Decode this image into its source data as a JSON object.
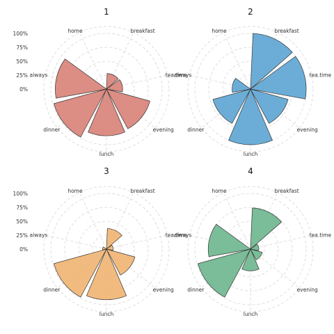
{
  "chart_data": [
    {
      "type": "polar-bar",
      "title": "1",
      "categories": [
        "breakfast",
        "tea.time",
        "evening",
        "lunch",
        "dinner",
        "always",
        "home"
      ],
      "values": [
        0.28,
        0.29,
        0.81,
        0.84,
        0.98,
        0.92,
        0.0
      ],
      "color": "#d9837a",
      "rlim": [
        0,
        1
      ],
      "rticks": [
        "0%",
        "25%",
        "50%",
        "75%",
        "100%"
      ],
      "show_rticks": true
    },
    {
      "type": "polar-bar",
      "title": "2",
      "categories": [
        "breakfast",
        "tea.time",
        "evening",
        "lunch",
        "dinner",
        "always",
        "home"
      ],
      "values": [
        1.0,
        1.0,
        0.7,
        1.0,
        0.7,
        0.33,
        0.0
      ],
      "color": "#5fa6d4",
      "rlim": [
        0,
        1
      ],
      "rticks": [
        "0%",
        "25%",
        "50%",
        "75%",
        "100%"
      ],
      "show_rticks": false
    },
    {
      "type": "polar-bar",
      "title": "3",
      "categories": [
        "breakfast",
        "tea.time",
        "evening",
        "lunch",
        "dinner",
        "always",
        "home"
      ],
      "values": [
        0.37,
        0.12,
        0.53,
        0.91,
        0.98,
        0.07,
        0.0
      ],
      "color": "#f0b574",
      "rlim": [
        0,
        1
      ],
      "rticks": [
        "0%",
        "25%",
        "50%",
        "75%",
        "100%"
      ],
      "show_rticks": true
    },
    {
      "type": "polar-bar",
      "title": "4",
      "categories": [
        "breakfast",
        "tea.time",
        "evening",
        "lunch",
        "dinner",
        "always",
        "home"
      ],
      "values": [
        0.74,
        0.15,
        0.22,
        0.39,
        0.98,
        0.76,
        0.0
      ],
      "color": "#6fb78f",
      "rlim": [
        0,
        1
      ],
      "rticks": [
        "0%",
        "25%",
        "50%",
        "75%",
        "100%"
      ],
      "show_rticks": false
    }
  ]
}
